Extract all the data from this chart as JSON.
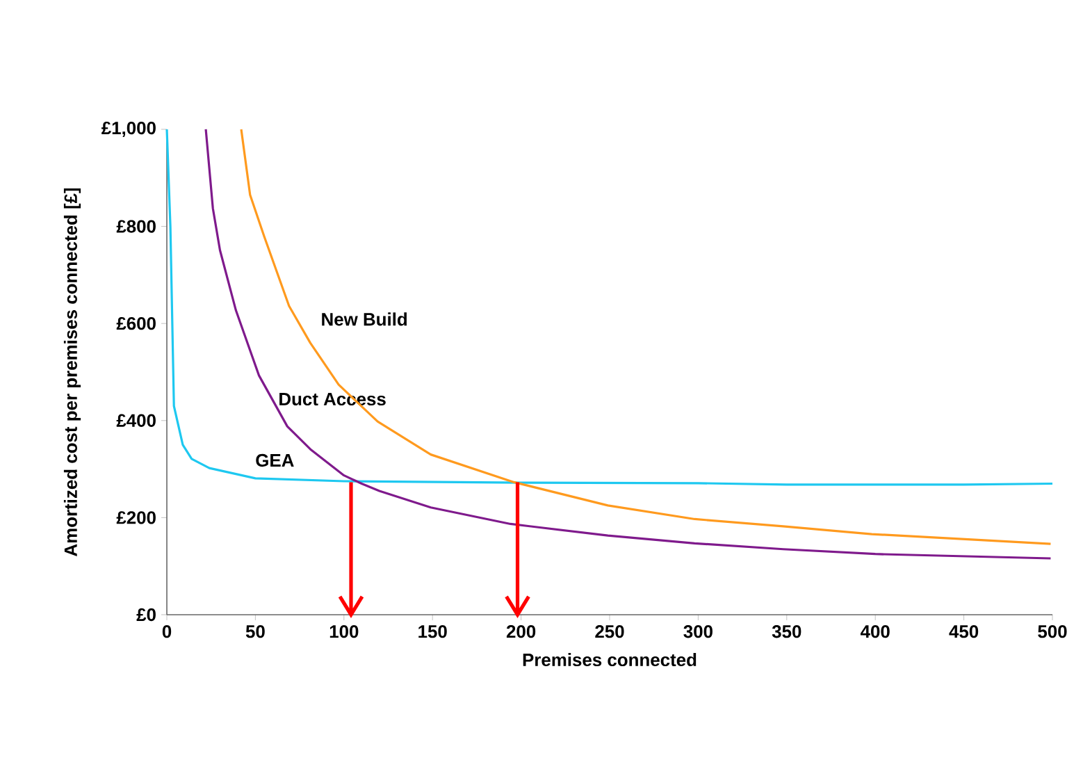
{
  "chart_data": {
    "type": "line",
    "xlabel": "Premises connected",
    "ylabel": "Amortized cost per premises connected [£]",
    "xlim": [
      0,
      500
    ],
    "ylim": [
      0,
      1000
    ],
    "xticks": [
      0,
      50,
      100,
      150,
      200,
      250,
      300,
      350,
      400,
      450,
      500
    ],
    "yticks": [
      {
        "value": 0,
        "label": "£0"
      },
      {
        "value": 200,
        "label": "£200"
      },
      {
        "value": 400,
        "label": "£400"
      },
      {
        "value": 600,
        "label": "£600"
      },
      {
        "value": 800,
        "label": "£800"
      },
      {
        "value": 1000,
        "label": "£1,000"
      }
    ],
    "grid": false,
    "marker": "none",
    "line_style": "solid",
    "ref_lines": [
      {
        "axis": "x",
        "value": 104,
        "color": "#ff0000"
      },
      {
        "axis": "x",
        "value": 198,
        "color": "#ff0000"
      }
    ],
    "series": [
      {
        "name": "GEA",
        "color": "#1ec8f0",
        "x": [
          0,
          2,
          4,
          9,
          14,
          24,
          50,
          100,
          200,
          300,
          350,
          400,
          450,
          500
        ],
        "values": [
          1000,
          800,
          430,
          350,
          321,
          302,
          281,
          275,
          272,
          271,
          268,
          268,
          268,
          270
        ]
      },
      {
        "name": "Duct Access",
        "color": "#7f1a8c",
        "x": [
          22,
          26,
          30,
          39,
          52,
          68,
          81,
          100,
          110,
          120,
          149,
          194,
          249,
          298,
          348,
          400,
          499
        ],
        "values": [
          1000,
          837,
          751,
          627,
          493,
          388,
          341,
          287,
          270,
          255,
          221,
          187,
          163,
          147,
          135,
          125,
          116
        ]
      },
      {
        "name": "New Build",
        "color": "#ff9a1e",
        "x": [
          42,
          47,
          55,
          69,
          81,
          97,
          119,
          149,
          196,
          249,
          298,
          348,
          398,
          499
        ],
        "values": [
          1000,
          865,
          779,
          636,
          560,
          474,
          398,
          330,
          273,
          225,
          197,
          182,
          166,
          146
        ]
      }
    ]
  }
}
